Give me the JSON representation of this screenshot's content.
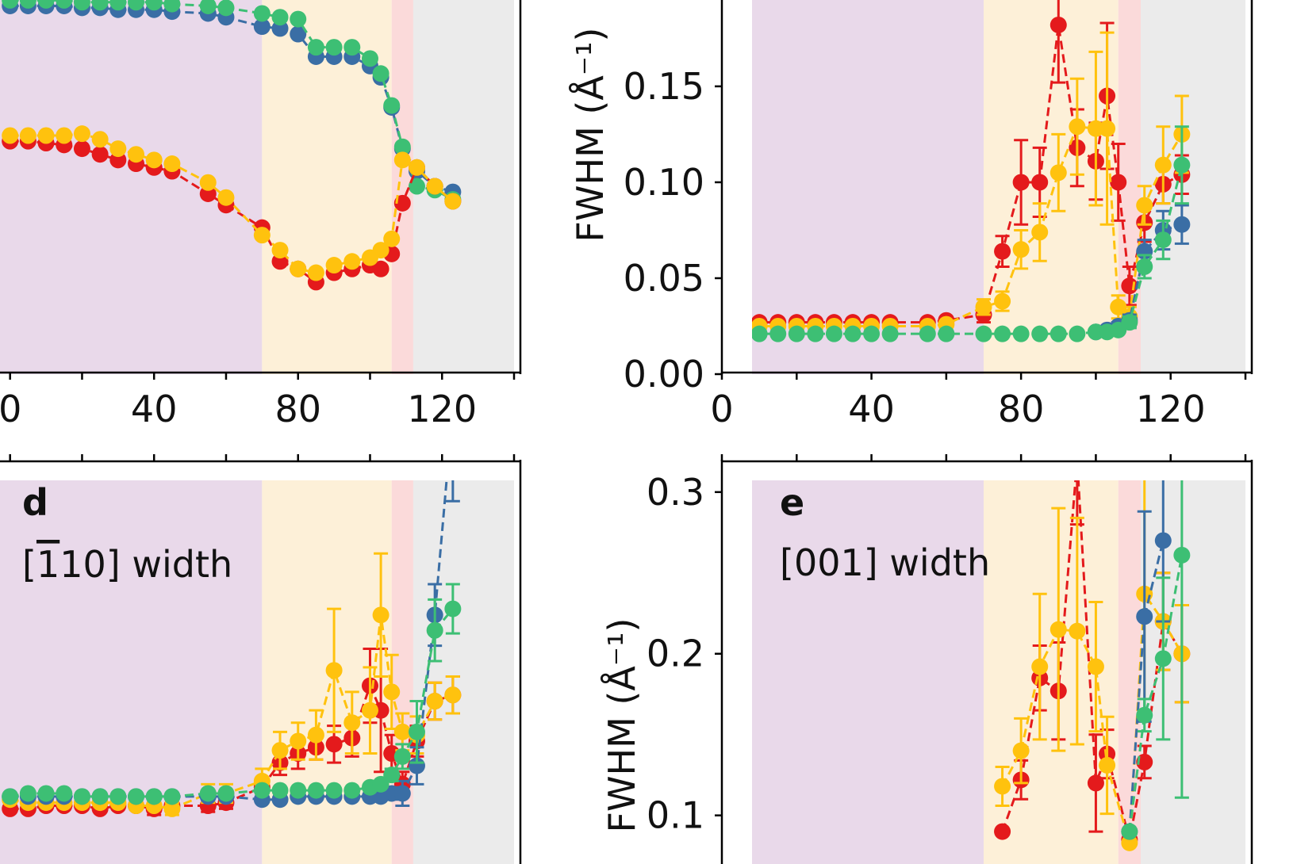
{
  "colors": {
    "red": "#e41a1c",
    "yellow": "#ffc20e",
    "blue": "#3a6ea5",
    "green": "#3dbf74",
    "bg_purple": "#e9d9ea",
    "bg_yellow": "#fdf0d8",
    "bg_red": "#fbdada",
    "bg_gray": "#ebebeb"
  },
  "background_regions": [
    {
      "from": -5,
      "to": 70,
      "color": "bg_purple"
    },
    {
      "from": 70,
      "to": 106,
      "color": "bg_yellow"
    },
    {
      "from": 106,
      "to": 112,
      "color": "bg_red"
    },
    {
      "from": 112,
      "to": 140,
      "color": "bg_gray"
    }
  ],
  "chart_data": [
    {
      "panel": "top-left",
      "type": "line",
      "panel_label": "",
      "title": "",
      "xlabel": "",
      "ylabel": "",
      "xlim": [
        -5,
        140
      ],
      "ylim": [
        0,
        1.0
      ],
      "xticks": [
        0,
        40,
        80,
        120
      ],
      "xtick_labels": [
        "0",
        "40",
        "80",
        "120"
      ],
      "series": [
        {
          "color": "blue",
          "x": [
            0,
            5,
            10,
            15,
            20,
            25,
            30,
            35,
            40,
            45,
            55,
            60,
            70,
            75,
            80,
            85,
            90,
            95,
            100,
            103,
            106,
            109,
            113,
            118,
            123
          ],
          "y": [
            0.98,
            0.98,
            0.98,
            0.98,
            0.975,
            0.975,
            0.97,
            0.97,
            0.97,
            0.965,
            0.96,
            0.95,
            0.925,
            0.92,
            0.905,
            0.845,
            0.845,
            0.845,
            0.82,
            0.79,
            0.71,
            0.6,
            0.54,
            0.5,
            0.485
          ]
        },
        {
          "color": "green",
          "x": [
            0,
            5,
            10,
            15,
            20,
            25,
            30,
            35,
            40,
            45,
            55,
            60,
            70,
            75,
            80,
            85,
            90,
            95,
            100,
            103,
            106,
            109,
            113,
            118,
            123
          ],
          "y": [
            0.995,
            0.995,
            0.995,
            0.995,
            0.99,
            0.99,
            0.99,
            0.99,
            0.99,
            0.985,
            0.98,
            0.975,
            0.96,
            0.95,
            0.945,
            0.87,
            0.87,
            0.87,
            0.84,
            0.8,
            0.715,
            0.605,
            0.5,
            0.49,
            0.465
          ]
        },
        {
          "color": "red",
          "x": [
            0,
            5,
            10,
            15,
            20,
            25,
            30,
            35,
            40,
            45,
            55,
            60,
            70,
            75,
            80,
            85,
            90,
            95,
            100,
            103,
            106,
            109,
            113,
            118,
            123
          ],
          "y": [
            0.62,
            0.62,
            0.615,
            0.61,
            0.6,
            0.585,
            0.57,
            0.56,
            0.55,
            0.54,
            0.48,
            0.45,
            0.39,
            0.3,
            0.28,
            0.245,
            0.27,
            0.28,
            0.29,
            0.28,
            0.32,
            0.455,
            0.55,
            0.5,
            0.46
          ]
        },
        {
          "color": "yellow",
          "x": [
            0,
            5,
            10,
            15,
            20,
            25,
            30,
            35,
            40,
            45,
            55,
            60,
            70,
            75,
            80,
            85,
            90,
            95,
            100,
            103,
            106,
            109,
            113,
            118,
            123
          ],
          "y": [
            0.635,
            0.635,
            0.635,
            0.635,
            0.64,
            0.625,
            0.6,
            0.585,
            0.57,
            0.56,
            0.51,
            0.47,
            0.37,
            0.33,
            0.28,
            0.27,
            0.29,
            0.3,
            0.31,
            0.33,
            0.36,
            0.57,
            0.55,
            0.5,
            0.46
          ]
        }
      ]
    },
    {
      "panel": "top-right",
      "type": "line",
      "panel_label": "",
      "title": "",
      "xlabel": "",
      "ylabel": "FWHM (Å⁻¹)",
      "xlim": [
        0,
        140
      ],
      "ylim": [
        0,
        0.195
      ],
      "xticks": [
        0,
        40,
        80,
        120
      ],
      "xtick_labels": [
        "0",
        "40",
        "80",
        "120"
      ],
      "yticks": [
        0.0,
        0.05,
        0.1,
        0.15
      ],
      "ytick_labels": [
        "0.00",
        "0.05",
        "0.10",
        "0.15"
      ],
      "series": [
        {
          "color": "red",
          "x": [
            0,
            5,
            10,
            15,
            20,
            25,
            30,
            35,
            40,
            45,
            55,
            60,
            70,
            75,
            80,
            85,
            90,
            95,
            100,
            103,
            106,
            109,
            113,
            118,
            123
          ],
          "y": [
            0.027,
            0.027,
            0.027,
            0.027,
            0.027,
            0.027,
            0.027,
            0.027,
            0.027,
            0.027,
            0.027,
            0.028,
            0.031,
            0.064,
            0.1,
            0.1,
            0.182,
            0.118,
            0.111,
            0.145,
            0.1,
            0.046,
            0.079,
            0.099,
            0.104
          ],
          "err": [
            0,
            0,
            0,
            0,
            0,
            0,
            0,
            0,
            0,
            0,
            0,
            0,
            0.004,
            0.008,
            0.022,
            0.018,
            0.03,
            0.02,
            0.02,
            0.038,
            0.02,
            0.01,
            0.01,
            0.01,
            0.01
          ]
        },
        {
          "color": "yellow",
          "x": [
            0,
            5,
            10,
            15,
            20,
            25,
            30,
            35,
            40,
            45,
            55,
            60,
            70,
            75,
            80,
            85,
            90,
            95,
            100,
            103,
            106,
            109,
            113,
            118,
            123
          ],
          "y": [
            0.025,
            0.025,
            0.025,
            0.025,
            0.025,
            0.025,
            0.025,
            0.025,
            0.025,
            0.025,
            0.025,
            0.026,
            0.035,
            0.038,
            0.065,
            0.074,
            0.105,
            0.129,
            0.128,
            0.128,
            0.035,
            0.03,
            0.088,
            0.109,
            0.125
          ],
          "err": [
            0,
            0,
            0,
            0,
            0,
            0,
            0,
            0,
            0,
            0,
            0,
            0,
            0.004,
            0.005,
            0.01,
            0.015,
            0.02,
            0.025,
            0.04,
            0.05,
            0.006,
            0.005,
            0.01,
            0.02,
            0.02
          ]
        },
        {
          "color": "blue",
          "x": [
            100,
            103,
            106,
            109,
            113,
            118,
            123
          ],
          "y": [
            0.022,
            0.023,
            0.025,
            0.028,
            0.064,
            0.075,
            0.078
          ],
          "err": [
            0,
            0,
            0.002,
            0.003,
            0.006,
            0.01,
            0.01
          ]
        },
        {
          "color": "green",
          "x": [
            0,
            5,
            10,
            15,
            20,
            25,
            30,
            35,
            40,
            45,
            55,
            60,
            70,
            75,
            80,
            85,
            90,
            95,
            100,
            103,
            106,
            109,
            113,
            118,
            123
          ],
          "y": [
            0.021,
            0.021,
            0.021,
            0.021,
            0.021,
            0.021,
            0.021,
            0.021,
            0.021,
            0.021,
            0.021,
            0.021,
            0.021,
            0.021,
            0.021,
            0.021,
            0.021,
            0.021,
            0.022,
            0.022,
            0.023,
            0.027,
            0.056,
            0.07,
            0.109
          ],
          "err": [
            0,
            0,
            0,
            0,
            0,
            0,
            0,
            0,
            0,
            0,
            0,
            0,
            0,
            0,
            0,
            0,
            0,
            0,
            0,
            0,
            0,
            0.003,
            0.006,
            0.01,
            0.02
          ]
        }
      ]
    },
    {
      "panel": "bottom-left",
      "type": "line",
      "panel_label": "d",
      "title": "[1̄10] width",
      "title_parts": [
        "[",
        "1",
        "10] width"
      ],
      "xlabel": "",
      "ylabel": "",
      "xlim": [
        -5,
        140
      ],
      "ylim": [
        0,
        0.135
      ],
      "xticks": [
        0,
        40,
        80,
        120
      ],
      "series": [
        {
          "color": "red",
          "x": [
            0,
            5,
            10,
            15,
            20,
            25,
            30,
            35,
            40,
            45,
            55,
            60,
            70,
            75,
            80,
            85,
            90,
            95,
            100,
            103,
            106,
            109,
            113,
            118,
            123
          ],
          "y": [
            0.02,
            0.02,
            0.021,
            0.021,
            0.021,
            0.02,
            0.021,
            0.021,
            0.02,
            0.021,
            0.021,
            0.022,
            0.027,
            0.035,
            0.038,
            0.04,
            0.041,
            0.043,
            0.06,
            0.052,
            0.038,
            0.028,
            0.042,
            0.055,
            0.057
          ],
          "err": [
            0,
            0,
            0,
            0,
            0,
            0,
            0,
            0,
            0.002,
            0,
            0.002,
            0.002,
            0.002,
            0.004,
            0.005,
            0.004,
            0.006,
            0.006,
            0.012,
            0.02,
            0.006,
            0.004,
            0.005,
            0.006,
            0.006
          ]
        },
        {
          "color": "yellow",
          "x": [
            0,
            5,
            10,
            15,
            20,
            25,
            30,
            35,
            40,
            45,
            55,
            60,
            70,
            75,
            80,
            85,
            90,
            95,
            100,
            103,
            106,
            109,
            113,
            118,
            123
          ],
          "y": [
            0.023,
            0.022,
            0.022,
            0.022,
            0.022,
            0.022,
            0.022,
            0.021,
            0.021,
            0.02,
            0.025,
            0.025,
            0.029,
            0.039,
            0.042,
            0.044,
            0.065,
            0.048,
            0.052,
            0.083,
            0.058,
            0.045,
            0.044,
            0.055,
            0.057
          ],
          "err": [
            0,
            0,
            0,
            0,
            0,
            0,
            0,
            0,
            0,
            0.002,
            0.003,
            0.003,
            0.004,
            0.006,
            0.006,
            0.008,
            0.02,
            0.01,
            0.014,
            0.02,
            0.012,
            0.006,
            0.006,
            0.006,
            0.006
          ]
        },
        {
          "color": "blue",
          "x": [
            0,
            5,
            10,
            15,
            20,
            25,
            30,
            35,
            40,
            45,
            55,
            60,
            70,
            75,
            80,
            85,
            90,
            95,
            100,
            103,
            106,
            109,
            113,
            118,
            123
          ],
          "y": [
            0.024,
            0.024,
            0.024,
            0.024,
            0.024,
            0.024,
            0.024,
            0.024,
            0.024,
            0.024,
            0.024,
            0.024,
            0.023,
            0.023,
            0.024,
            0.024,
            0.024,
            0.024,
            0.024,
            0.024,
            0.025,
            0.025,
            0.034,
            0.083,
            0.15
          ],
          "err": [
            0,
            0,
            0,
            0,
            0,
            0,
            0,
            0,
            0,
            0,
            0,
            0,
            0,
            0,
            0,
            0,
            0,
            0,
            0,
            0,
            0.002,
            0.004,
            0.006,
            0.01,
            0.03
          ]
        },
        {
          "color": "green",
          "x": [
            0,
            5,
            10,
            15,
            20,
            25,
            30,
            35,
            40,
            45,
            55,
            60,
            70,
            75,
            80,
            85,
            90,
            95,
            100,
            103,
            106,
            109,
            113,
            118,
            123
          ],
          "y": [
            0.024,
            0.025,
            0.025,
            0.025,
            0.024,
            0.024,
            0.024,
            0.024,
            0.024,
            0.024,
            0.025,
            0.025,
            0.026,
            0.026,
            0.026,
            0.026,
            0.026,
            0.026,
            0.027,
            0.028,
            0.031,
            0.037,
            0.045,
            0.078,
            0.085
          ],
          "err": [
            0,
            0,
            0,
            0,
            0,
            0,
            0,
            0,
            0,
            0,
            0,
            0,
            0,
            0,
            0,
            0,
            0,
            0,
            0,
            0,
            0.002,
            0.004,
            0.01,
            0.01,
            0.008
          ]
        }
      ]
    },
    {
      "panel": "bottom-right",
      "type": "line",
      "panel_label": "e",
      "title": "[001] width",
      "xlabel": "",
      "ylabel": "FWHM (Å⁻¹)",
      "xlim": [
        0,
        140
      ],
      "ylim": [
        0.092,
        0.32
      ],
      "xticks": [
        0,
        40,
        80,
        120
      ],
      "yticks": [
        0.1,
        0.2,
        0.3
      ],
      "ytick_labels": [
        "0.1",
        "0.2",
        "0.3"
      ],
      "series": [
        {
          "color": "red",
          "x": [
            75,
            80,
            85,
            90,
            95,
            100,
            103,
            109,
            113,
            118,
            123
          ],
          "y": [
            0.09,
            0.122,
            0.185,
            0.177,
            0.32,
            0.12,
            0.138,
            0.085,
            0.133,
            0.22,
            0.2
          ],
          "err": [
            0,
            0.012,
            0.02,
            0.03,
            0.04,
            0.03,
            0.015,
            0,
            0.01,
            0.03,
            0.03
          ]
        },
        {
          "color": "yellow",
          "x": [
            75,
            80,
            85,
            90,
            95,
            100,
            103,
            109,
            113,
            118,
            123
          ],
          "y": [
            0.118,
            0.14,
            0.192,
            0.215,
            0.214,
            0.192,
            0.131,
            0.083,
            0.237,
            0.22,
            0.2
          ],
          "err": [
            0.012,
            0.02,
            0.045,
            0.075,
            0.07,
            0.04,
            0.03,
            0,
            0.075,
            0.03,
            0.03
          ]
        },
        {
          "color": "blue",
          "x": [
            109,
            113,
            118
          ],
          "y": [
            0.09,
            0.223,
            0.27
          ],
          "err": [
            0,
            0.065,
            0.05
          ]
        },
        {
          "color": "green",
          "x": [
            109,
            113,
            118,
            123
          ],
          "y": [
            0.09,
            0.162,
            0.197,
            0.261
          ],
          "err": [
            0,
            0.01,
            0.05,
            0.15
          ]
        }
      ]
    }
  ]
}
